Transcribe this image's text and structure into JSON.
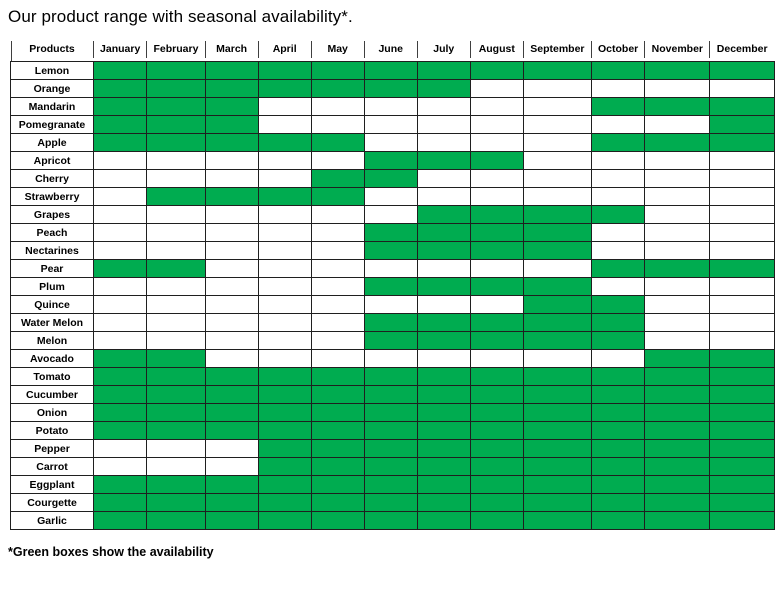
{
  "title": "Our product range with seasonal availability*.",
  "footnote": "*Green boxes show the availability",
  "colors": {
    "available": "#00AC50",
    "grid_border": "#1f1f1f",
    "text": "#000000",
    "background": "#ffffff"
  },
  "table": {
    "header": [
      "Products",
      "January",
      "February",
      "March",
      "April",
      "May",
      "June",
      "July",
      "August",
      "September",
      "October",
      "November",
      "December"
    ],
    "rows": [
      {
        "product": "Lemon",
        "availability": [
          1,
          1,
          1,
          1,
          1,
          1,
          1,
          1,
          1,
          1,
          1,
          1
        ]
      },
      {
        "product": "Orange",
        "availability": [
          1,
          1,
          1,
          1,
          1,
          1,
          1,
          0,
          0,
          0,
          0,
          0
        ]
      },
      {
        "product": "Mandarin",
        "availability": [
          1,
          1,
          1,
          0,
          0,
          0,
          0,
          0,
          0,
          1,
          1,
          1
        ]
      },
      {
        "product": "Pomegranate",
        "availability": [
          1,
          1,
          1,
          0,
          0,
          0,
          0,
          0,
          0,
          0,
          0,
          1
        ]
      },
      {
        "product": "Apple",
        "availability": [
          1,
          1,
          1,
          1,
          1,
          0,
          0,
          0,
          0,
          1,
          1,
          1
        ]
      },
      {
        "product": "Apricot",
        "availability": [
          0,
          0,
          0,
          0,
          0,
          1,
          1,
          1,
          0,
          0,
          0,
          0
        ]
      },
      {
        "product": "Cherry",
        "availability": [
          0,
          0,
          0,
          0,
          1,
          1,
          0,
          0,
          0,
          0,
          0,
          0
        ]
      },
      {
        "product": "Strawberry",
        "availability": [
          0,
          1,
          1,
          1,
          1,
          0,
          0,
          0,
          0,
          0,
          0,
          0
        ]
      },
      {
        "product": "Grapes",
        "availability": [
          0,
          0,
          0,
          0,
          0,
          0,
          1,
          1,
          1,
          1,
          0,
          0
        ]
      },
      {
        "product": "Peach",
        "availability": [
          0,
          0,
          0,
          0,
          0,
          1,
          1,
          1,
          1,
          0,
          0,
          0
        ]
      },
      {
        "product": "Nectarines",
        "availability": [
          0,
          0,
          0,
          0,
          0,
          1,
          1,
          1,
          1,
          0,
          0,
          0
        ]
      },
      {
        "product": "Pear",
        "availability": [
          1,
          1,
          0,
          0,
          0,
          0,
          0,
          0,
          0,
          1,
          1,
          1
        ]
      },
      {
        "product": "Plum",
        "availability": [
          0,
          0,
          0,
          0,
          0,
          1,
          1,
          1,
          1,
          0,
          0,
          0
        ]
      },
      {
        "product": "Quince",
        "availability": [
          0,
          0,
          0,
          0,
          0,
          0,
          0,
          0,
          1,
          1,
          0,
          0
        ]
      },
      {
        "product": "Water Melon",
        "availability": [
          0,
          0,
          0,
          0,
          0,
          1,
          1,
          1,
          1,
          1,
          0,
          0
        ]
      },
      {
        "product": "Melon",
        "availability": [
          0,
          0,
          0,
          0,
          0,
          1,
          1,
          1,
          1,
          1,
          0,
          0
        ]
      },
      {
        "product": "Avocado",
        "availability": [
          1,
          1,
          0,
          0,
          0,
          0,
          0,
          0,
          0,
          0,
          1,
          1
        ]
      },
      {
        "product": "Tomato",
        "availability": [
          1,
          1,
          1,
          1,
          1,
          1,
          1,
          1,
          1,
          1,
          1,
          1
        ]
      },
      {
        "product": "Cucumber",
        "availability": [
          1,
          1,
          1,
          1,
          1,
          1,
          1,
          1,
          1,
          1,
          1,
          1
        ]
      },
      {
        "product": "Onion",
        "availability": [
          1,
          1,
          1,
          1,
          1,
          1,
          1,
          1,
          1,
          1,
          1,
          1
        ]
      },
      {
        "product": "Potato",
        "availability": [
          1,
          1,
          1,
          1,
          1,
          1,
          1,
          1,
          1,
          1,
          1,
          1
        ]
      },
      {
        "product": "Pepper",
        "availability": [
          0,
          0,
          0,
          1,
          1,
          1,
          1,
          1,
          1,
          1,
          1,
          1
        ]
      },
      {
        "product": "Carrot",
        "availability": [
          0,
          0,
          0,
          1,
          1,
          1,
          1,
          1,
          1,
          1,
          1,
          1
        ]
      },
      {
        "product": "Eggplant",
        "availability": [
          1,
          1,
          1,
          1,
          1,
          1,
          1,
          1,
          1,
          1,
          1,
          1
        ]
      },
      {
        "product": "Courgette",
        "availability": [
          1,
          1,
          1,
          1,
          1,
          1,
          1,
          1,
          1,
          1,
          1,
          1
        ]
      },
      {
        "product": "Garlic",
        "availability": [
          1,
          1,
          1,
          1,
          1,
          1,
          1,
          1,
          1,
          1,
          1,
          1
        ]
      }
    ]
  }
}
